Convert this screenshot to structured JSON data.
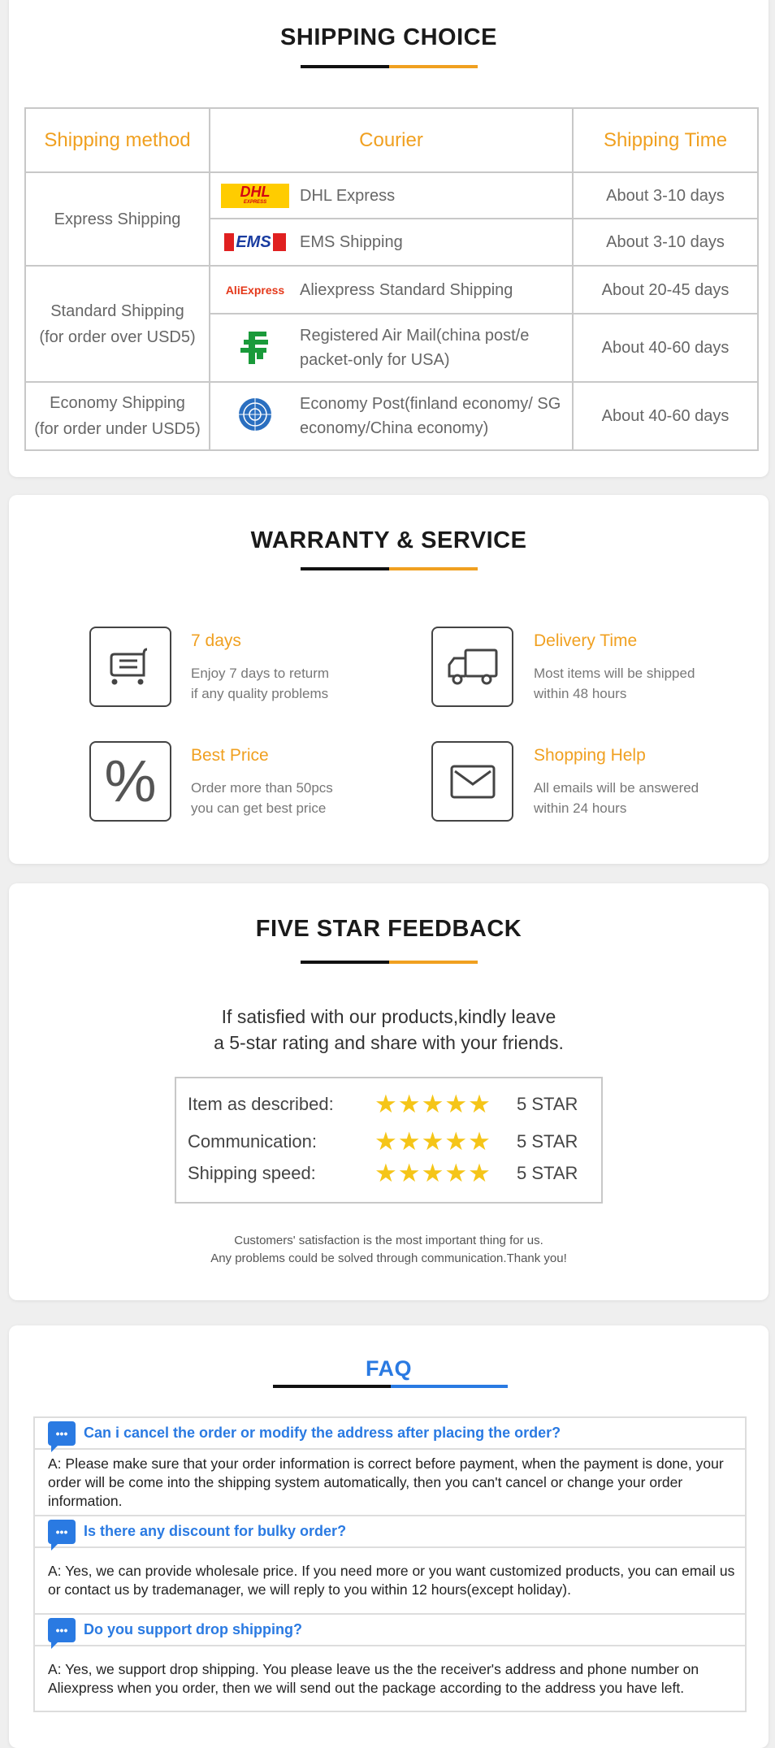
{
  "colors": {
    "accent": "#f0a020",
    "faq_blue": "#2a7ae2",
    "star": "#f5c518"
  },
  "shipping": {
    "title": "SHIPPING CHOICE",
    "headers": [
      "Shipping method",
      "Courier",
      "Shipping Time"
    ],
    "methods": [
      "Express Shipping",
      "Standard Shipping\n(for order over USD5)",
      "Economy Shipping\n(for order under USD5)"
    ],
    "rows": [
      {
        "logo": "DHL",
        "logo_sub": "EXPRESS",
        "courier": "DHL Express",
        "time": "About 3-10 days"
      },
      {
        "logo": "EMS",
        "courier": "EMS Shipping",
        "time": "About 3-10 days"
      },
      {
        "logo": "AliExpress",
        "courier": "Aliexpress Standard Shipping",
        "time": "About 20-45 days"
      },
      {
        "logo": "china-post-icon",
        "courier": "Registered Air Mail(china post/e packet-only for USA)",
        "time": "About 40-60 days"
      },
      {
        "logo": "un-emblem-icon",
        "courier": "Economy Post(finland economy/ SG economy/China economy)",
        "time": "About 40-60 days"
      }
    ]
  },
  "warranty": {
    "title": "WARRANTY & SERVICE",
    "items": [
      {
        "icon": "cart-icon",
        "title": "7 days",
        "l1": "Enjoy 7 days to returm",
        "l2": "if any quality problems"
      },
      {
        "icon": "truck-icon",
        "title": "Delivery Time",
        "l1": "Most items will be shipped",
        "l2": "within 48 hours"
      },
      {
        "icon": "percent-icon",
        "title": "Best Price",
        "l1": "Order more than 50pcs",
        "l2": "you can get best price"
      },
      {
        "icon": "mail-icon",
        "title": "Shopping Help",
        "l1": "All emails will be answered",
        "l2": "within 24 hours"
      }
    ]
  },
  "feedback": {
    "title": "FIVE STAR FEEDBACK",
    "intro1": "If satisfied with our products,kindly leave",
    "intro2": "a 5-star rating and share with your friends.",
    "ratings": [
      {
        "label": "Item as described:",
        "stars": 5,
        "text": "5 STAR"
      },
      {
        "label": "Communication:",
        "stars": 5,
        "text": "5 STAR"
      },
      {
        "label": "Shipping speed:",
        "stars": 5,
        "text": "5 STAR"
      }
    ],
    "note1": "Customers' satisfaction is the most important thing for us.",
    "note2": "Any problems could be solved through communication.Thank you!"
  },
  "faq": {
    "title": "FAQ",
    "items": [
      {
        "q": "Can i cancel the order or modify the address after placing the order?",
        "a": "A: Please make sure that your order information is correct before payment, when the payment is done, your order will be come into the shipping system automatically, then you can't cancel or change your order information."
      },
      {
        "q": "Is there any discount for bulky order?",
        "a": "A: Yes, we can provide wholesale price. If you need more or you want customized products, you can email us or contact us by trademanager, we will reply to you within 12 hours(except holiday)."
      },
      {
        "q": "Do you support drop shipping?",
        "a": "A: Yes, we support drop shipping. You please leave us the the receiver's address and phone number on Aliexpress when you order, then we will send out the package according to the address you have left."
      }
    ]
  }
}
